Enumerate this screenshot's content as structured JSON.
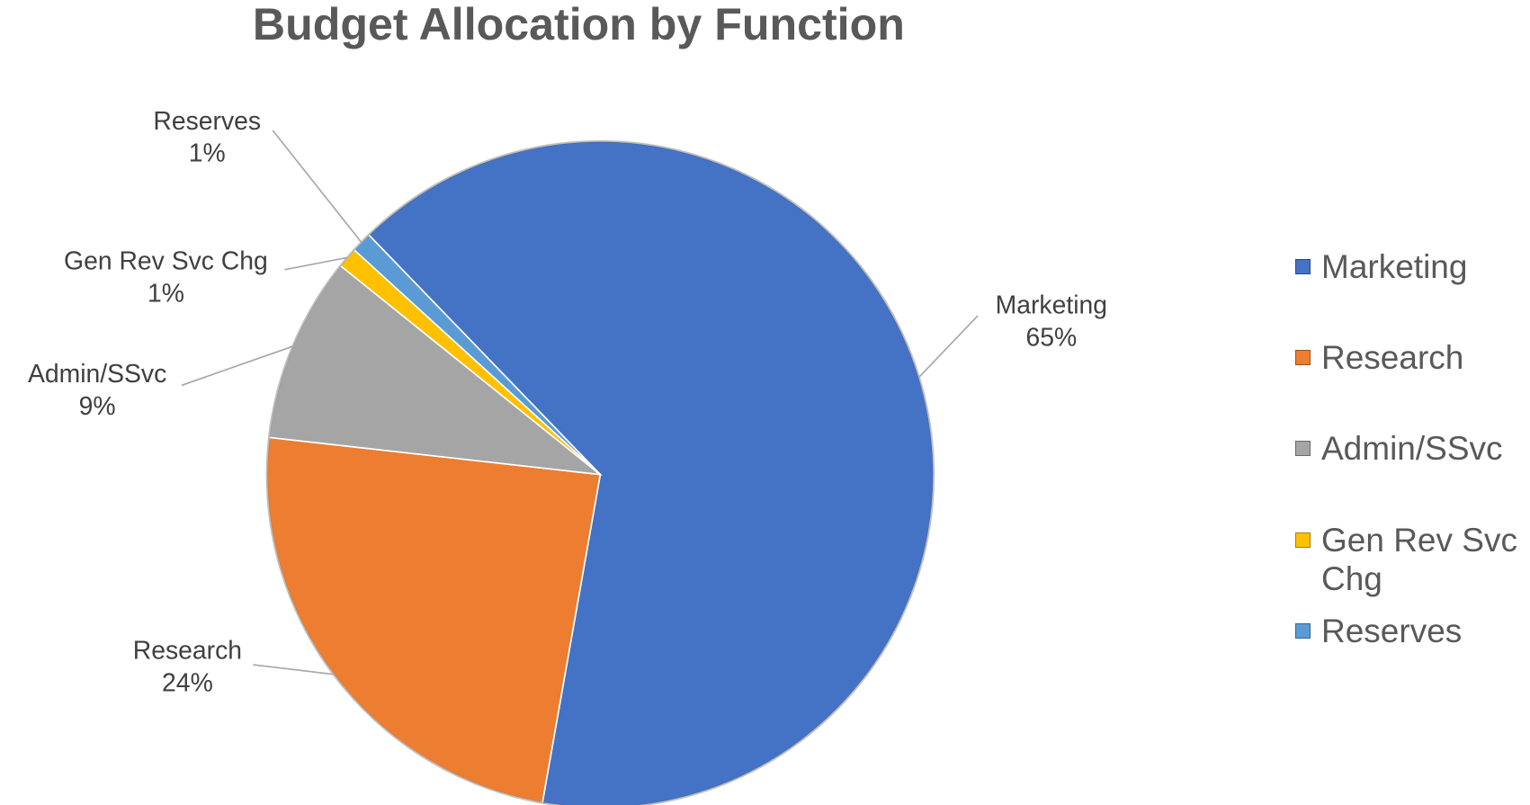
{
  "chart_data": {
    "type": "pie",
    "title": "Budget Allocation by Function",
    "categories": [
      "Marketing",
      "Research",
      "Admin/SSvc",
      "Gen Rev Svc Chg",
      "Reserves"
    ],
    "values": [
      65,
      24,
      9,
      1,
      1
    ],
    "value_labels": [
      "65%",
      "24%",
      "9%",
      "1%",
      "1%"
    ],
    "colors": [
      "#4472c4",
      "#ed7d31",
      "#a5a5a5",
      "#ffc000",
      "#5b9bd5"
    ],
    "legend": "right"
  }
}
